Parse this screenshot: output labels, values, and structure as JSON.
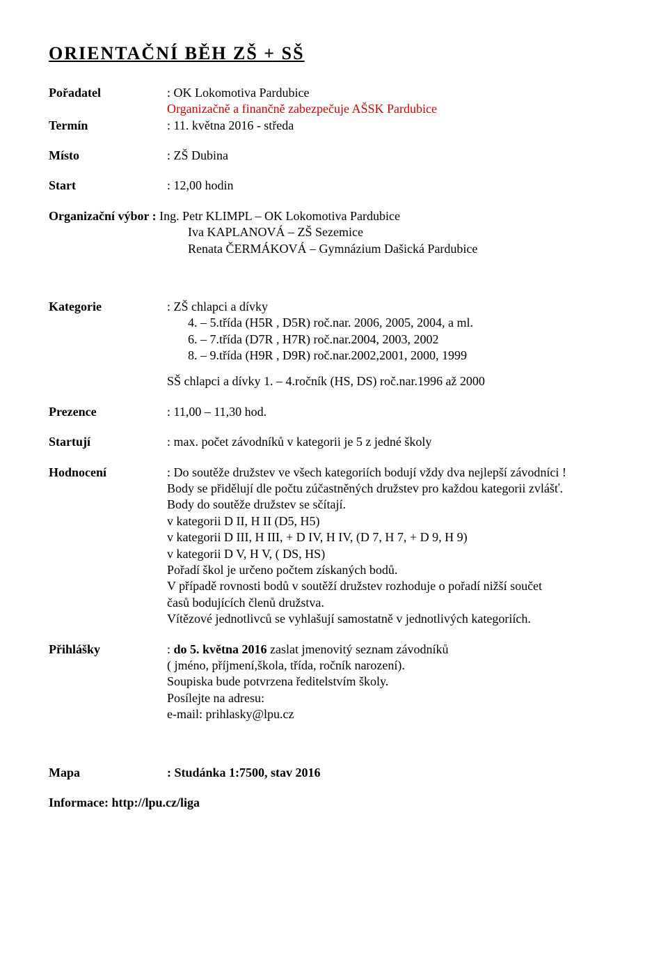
{
  "title": "ORIENTAČNÍ  BĚH  ZŠ + SŠ",
  "poradatel": {
    "label": "Pořadatel",
    "line1": ": OK Lokomotiva Pardubice",
    "line2": "Organizačně a finančně zabezpečuje AŠSK Pardubice"
  },
  "termin": {
    "label": "Termín",
    "value": ": 11. května 2016  -  středa"
  },
  "misto": {
    "label": "Místo",
    "value": ": ZŠ Dubina"
  },
  "start": {
    "label": "Start",
    "value": ": 12,00 hodin"
  },
  "orgvybor": {
    "label": "Organizační výbor : ",
    "line1": "Ing. Petr KLIMPL – OK Lokomotiva Pardubice",
    "line2": "Iva  KAPLANOVÁ – ZŠ Sezemice",
    "line3": "Renata ČERMÁKOVÁ – Gymnázium Dašická Pardubice"
  },
  "kategorie": {
    "label": "Kategorie",
    "line1": ": ZŠ chlapci a dívky",
    "line2": "4. – 5.třída (H5R , D5R) roč.nar. 2006, 2005, 2004, a ml.",
    "line3": "6. – 7.třída (D7R , H7R) roč.nar.2004, 2003, 2002",
    "line4": "8. – 9.třída (H9R , D9R) roč.nar.2002,2001, 2000, 1999",
    "line5": "SŠ chlapci a dívky 1. – 4.ročník (HS, DS) roč.nar.1996 až 2000"
  },
  "prezence": {
    "label": "Prezence",
    "value": ": 11,00 – 11,30 hod."
  },
  "startuji": {
    "label": "Startují",
    "value": ": max. počet závodníků v kategorii je 5 z jedné školy"
  },
  "hodnoceni": {
    "label": "Hodnocení",
    "l1": ": Do soutěže družstev ve všech kategoriích bodují vždy dva nejlepší závodníci !",
    "l2": "Body se přidělují dle počtu zúčastněných družstev pro každou kategorii zvlášť.",
    "l3": "Body do soutěže družstev se sčítají.",
    "l4": "v kategorii D II, H II (D5, H5)",
    "l5": "v kategorii D III, H III, + D IV, H IV, (D 7, H 7, + D 9, H 9)",
    "l6": "v kategorii D V, H V, ( DS, HS)",
    "l7": "Pořadí škol je určeno počtem získaných bodů.",
    "l8": "V případě rovnosti bodů v soutěží družstev rozhoduje o pořadí nižší součet",
    "l9": "časů bodujících členů družstva.",
    "l10": "Vítězové jednotlivců se vyhlašují samostatně v jednotlivých kategoriích."
  },
  "prihlasky": {
    "label": "Přihlášky",
    "lead": ": ",
    "bold": "do 5. května 2016",
    "rest": " zaslat jmenovitý seznam závodníků",
    "l2": "( jméno, příjmení,škola, třída, ročník narození).",
    "l3": "Soupiska bude potvrzena ředitelstvím školy.",
    "l4": "Posílejte na adresu:",
    "l5": "e-mail: prihlasky@lpu.cz"
  },
  "mapa": {
    "label": "Mapa",
    "value": ": Studánka 1:7500, stav 2016"
  },
  "informace": {
    "label": "Informace: ",
    "value": "http://lpu.cz/liga"
  }
}
